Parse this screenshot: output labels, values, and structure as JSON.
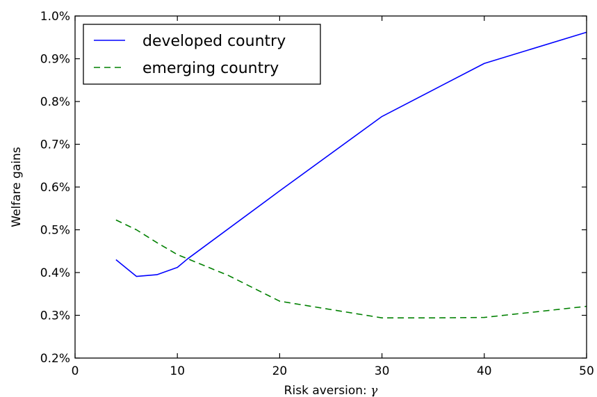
{
  "chart_data": {
    "type": "line",
    "title": "",
    "xlabel": "Risk aversion: ",
    "xlabel_symbol": "γ",
    "ylabel": "Welfare gains",
    "xlim": [
      0,
      50
    ],
    "ylim": [
      0.2,
      1.0
    ],
    "x_ticks": [
      0,
      10,
      20,
      30,
      40,
      50
    ],
    "x_tick_labels": [
      "0",
      "10",
      "20",
      "30",
      "40",
      "50"
    ],
    "y_ticks": [
      0.2,
      0.3,
      0.4,
      0.5,
      0.6,
      0.7,
      0.8,
      0.9,
      1.0
    ],
    "y_tick_labels": [
      "0.2%",
      "0.3%",
      "0.4%",
      "0.5%",
      "0.6%",
      "0.7%",
      "0.8%",
      "0.9%",
      "1.0%"
    ],
    "grid": false,
    "legend_position": "top-left",
    "series": [
      {
        "name": "developed country",
        "color": "#0000ff",
        "dash": "solid",
        "x": [
          4,
          6,
          8,
          10,
          11,
          20,
          30,
          40,
          50
        ],
        "y": [
          0.43,
          0.391,
          0.395,
          0.412,
          0.432,
          0.591,
          0.765,
          0.889,
          0.962
        ]
      },
      {
        "name": "emerging country",
        "color": "#008000",
        "dash": "dashed",
        "x": [
          4,
          6,
          8,
          10,
          15,
          20,
          30,
          35,
          40,
          50
        ],
        "y": [
          0.523,
          0.5,
          0.47,
          0.442,
          0.393,
          0.333,
          0.294,
          0.294,
          0.295,
          0.321
        ]
      }
    ]
  }
}
